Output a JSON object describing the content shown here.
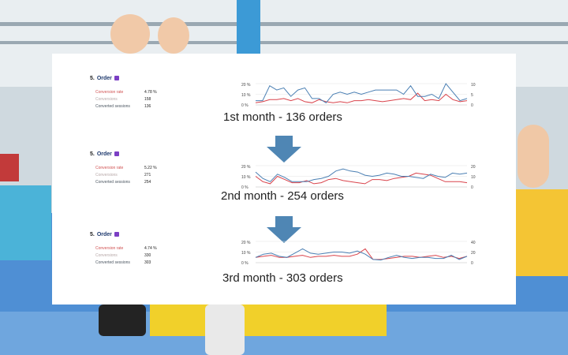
{
  "panels": [
    {
      "step_num": "5.",
      "title": "Order",
      "rows": [
        {
          "label": "Conversion rate",
          "value": "4.78 %"
        },
        {
          "label": "Conversions",
          "value": "158"
        },
        {
          "label": "Converted sessions",
          "value": "136"
        }
      ],
      "left_ticks": [
        "20 %",
        "10 %",
        "0 %"
      ],
      "right_ticks": [
        "10",
        "5",
        "0"
      ],
      "caption": "1st month - 136 orders"
    },
    {
      "step_num": "5.",
      "title": "Order",
      "rows": [
        {
          "label": "Conversion rate",
          "value": "5.22 %"
        },
        {
          "label": "Conversions",
          "value": "271"
        },
        {
          "label": "Converted sessions",
          "value": "254"
        }
      ],
      "left_ticks": [
        "20 %",
        "10 %",
        "0 %"
      ],
      "right_ticks": [
        "20",
        "10",
        "0"
      ],
      "caption": "2nd month - 254 orders"
    },
    {
      "step_num": "5.",
      "title": "Order",
      "rows": [
        {
          "label": "Conversion rate",
          "value": "4.74 %"
        },
        {
          "label": "Conversions",
          "value": "330"
        },
        {
          "label": "Converted sessions",
          "value": "303"
        }
      ],
      "left_ticks": [
        "20 %",
        "10 %",
        "0 %"
      ],
      "right_ticks": [
        "40",
        "20",
        "0"
      ],
      "caption": "3rd month - 303 orders"
    }
  ],
  "colors": {
    "rate_line": "#d9434b",
    "sessions_line": "#4a7fb3",
    "arrow": "#4f86b4"
  },
  "chart_data": [
    {
      "type": "line",
      "ylim_left": [
        0,
        20
      ],
      "ylim_right": [
        0,
        10
      ],
      "series": [
        {
          "axis": "left",
          "values": [
            2,
            3,
            5,
            5,
            6,
            4,
            6,
            3,
            2,
            5,
            3,
            2,
            3,
            2,
            4,
            4,
            5,
            4,
            3,
            4,
            5,
            6,
            5,
            11,
            4,
            5,
            4,
            10,
            5,
            3,
            4
          ]
        },
        {
          "axis": "right",
          "values": [
            2,
            2,
            9,
            7,
            8,
            4,
            7,
            8,
            3,
            3,
            1,
            5,
            6,
            5,
            6,
            5,
            6,
            7,
            7,
            7,
            7,
            5,
            9,
            4,
            4,
            5,
            3,
            10,
            6,
            2,
            3
          ]
        }
      ]
    },
    {
      "type": "line",
      "ylim_left": [
        0,
        20
      ],
      "ylim_right": [
        0,
        20
      ],
      "series": [
        {
          "axis": "left",
          "values": [
            10,
            5,
            3,
            10,
            7,
            4,
            4,
            6,
            3,
            4,
            7,
            8,
            6,
            5,
            4,
            3,
            7,
            7,
            6,
            8,
            9,
            10,
            13,
            12,
            11,
            8,
            5,
            5,
            5,
            4
          ]
        },
        {
          "axis": "right",
          "values": [
            14,
            8,
            5,
            12,
            9,
            5,
            5,
            5,
            7,
            8,
            10,
            15,
            17,
            15,
            14,
            11,
            10,
            11,
            13,
            12,
            10,
            10,
            9,
            8,
            12,
            10,
            9,
            13,
            12,
            13
          ]
        }
      ]
    },
    {
      "type": "line",
      "ylim_left": [
        0,
        20
      ],
      "ylim_right": [
        0,
        40
      ],
      "series": [
        {
          "axis": "left",
          "values": [
            5,
            6,
            7,
            5,
            5,
            6,
            7,
            5,
            6,
            6,
            7,
            6,
            6,
            8,
            13,
            3,
            3,
            4,
            5,
            6,
            6,
            5,
            6,
            7,
            5,
            6,
            4,
            6
          ]
        },
        {
          "axis": "right",
          "values": [
            10,
            16,
            18,
            12,
            10,
            18,
            26,
            18,
            16,
            18,
            20,
            20,
            18,
            22,
            16,
            6,
            5,
            10,
            14,
            10,
            8,
            10,
            10,
            8,
            8,
            14,
            6,
            12
          ]
        }
      ]
    }
  ]
}
